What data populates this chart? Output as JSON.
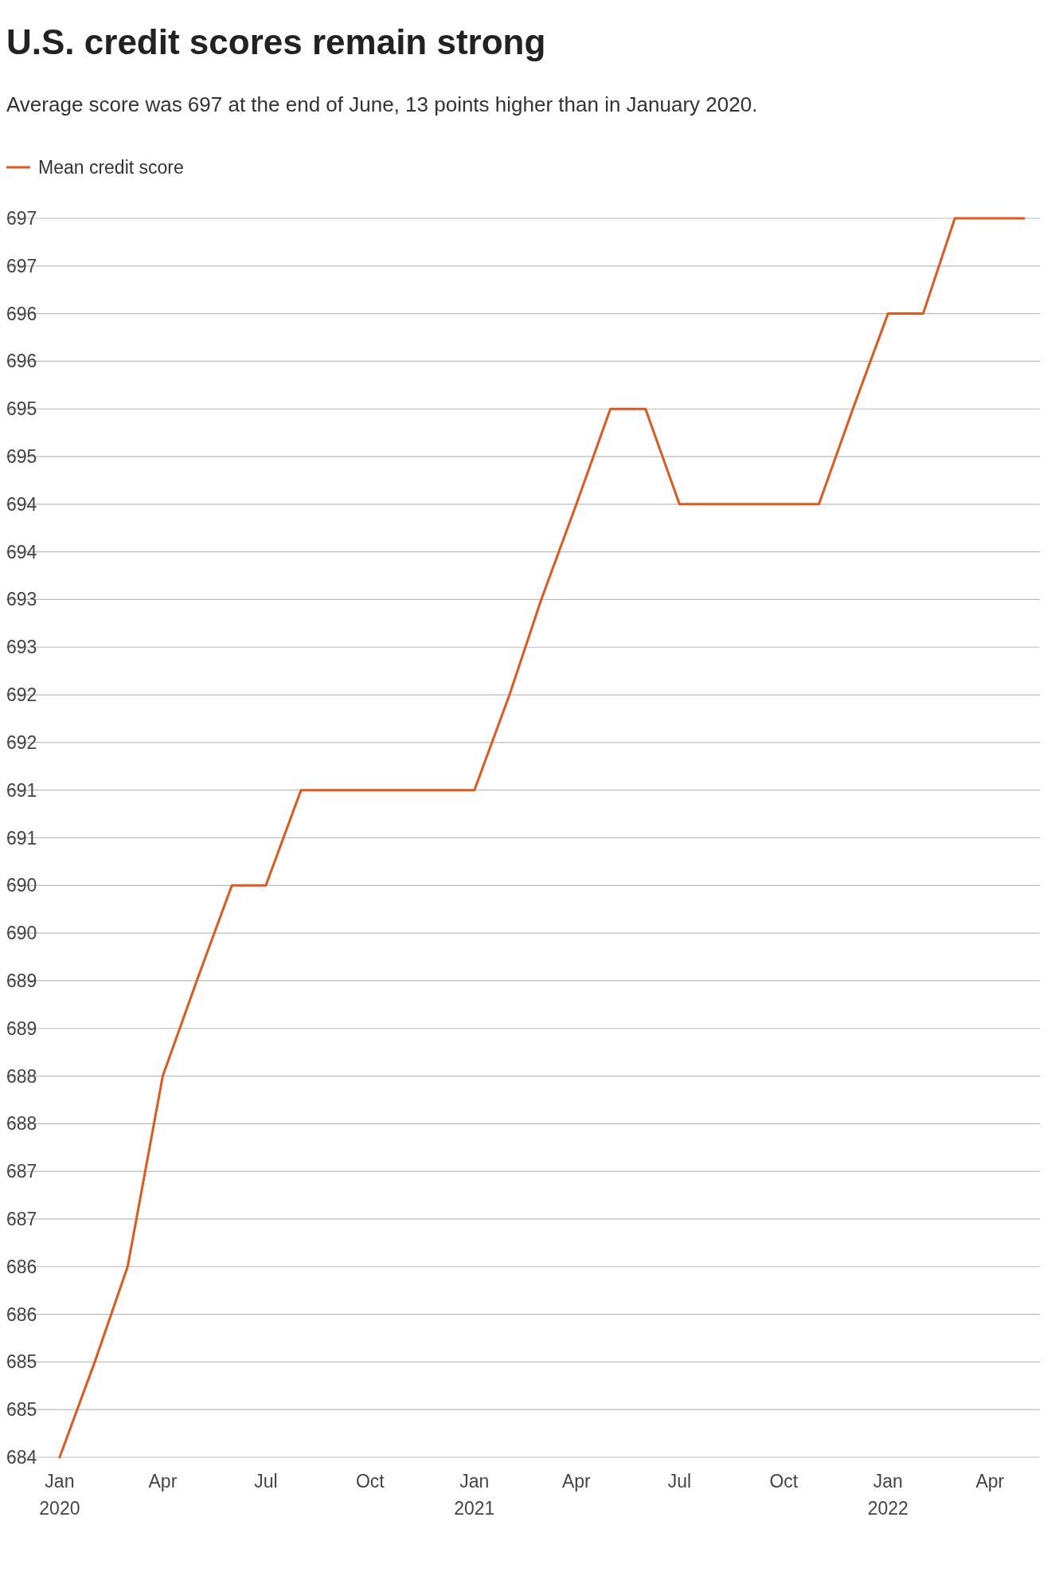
{
  "chart_data": {
    "type": "line",
    "title": "U.S. credit scores remain strong",
    "subtitle": "Average score was 697 at the end of June, 13 points higher than in January 2020.",
    "x": [
      "2020-01",
      "2020-02",
      "2020-03",
      "2020-04",
      "2020-05",
      "2020-06",
      "2020-07",
      "2020-08",
      "2020-09",
      "2020-10",
      "2020-11",
      "2020-12",
      "2021-01",
      "2021-02",
      "2021-03",
      "2021-04",
      "2021-05",
      "2021-06",
      "2021-07",
      "2021-08",
      "2021-09",
      "2021-10",
      "2021-11",
      "2021-12",
      "2022-01",
      "2022-02",
      "2022-03",
      "2022-04",
      "2022-05"
    ],
    "series": [
      {
        "name": "Mean credit score",
        "color": "#e3571b",
        "values": [
          684,
          685,
          686,
          688,
          689,
          690,
          690,
          691,
          691,
          691,
          691,
          691,
          691,
          692,
          693,
          694,
          695,
          695,
          694,
          694,
          694,
          694,
          694,
          695,
          696,
          696,
          697,
          697,
          697
        ]
      }
    ],
    "xlim": [
      "2019-11-15",
      "2022-05-15"
    ],
    "xticks": [
      {
        "value": "2020-01",
        "label": "Jan 2020"
      },
      {
        "value": "2020-04",
        "label": "Apr"
      },
      {
        "value": "2020-07",
        "label": "Jul"
      },
      {
        "value": "2020-10",
        "label": "Oct"
      },
      {
        "value": "2021-01",
        "label": "Jan 2021"
      },
      {
        "value": "2021-04",
        "label": "Apr"
      },
      {
        "value": "2021-07",
        "label": "Jul"
      },
      {
        "value": "2021-10",
        "label": "Oct"
      },
      {
        "value": "2022-01",
        "label": "Jan 2022"
      },
      {
        "value": "2022-04",
        "label": "Apr"
      }
    ],
    "ylim": [
      684,
      697
    ],
    "yticks": [
      684,
      {
        "value": 684.5,
        "label": "685"
      },
      685,
      {
        "value": 685.5,
        "label": "686"
      },
      686,
      {
        "value": 686.5,
        "label": "687"
      },
      687,
      {
        "value": 687.5,
        "label": "688"
      },
      688,
      {
        "value": 688.5,
        "label": "689"
      },
      689,
      {
        "value": 689.5,
        "label": "690"
      },
      690,
      {
        "value": 690.5,
        "label": "691"
      },
      691,
      {
        "value": 691.5,
        "label": "692"
      },
      692,
      {
        "value": 692.5,
        "label": "693"
      },
      693,
      {
        "value": 693.5,
        "label": "694"
      },
      694,
      {
        "value": 694.5,
        "label": "695"
      },
      695,
      {
        "value": 695.5,
        "label": "696"
      },
      696,
      {
        "value": 696.5,
        "label": "697"
      },
      697
    ],
    "grid": "y",
    "legend": "top left",
    "marker": "none",
    "line_style": "solid"
  }
}
